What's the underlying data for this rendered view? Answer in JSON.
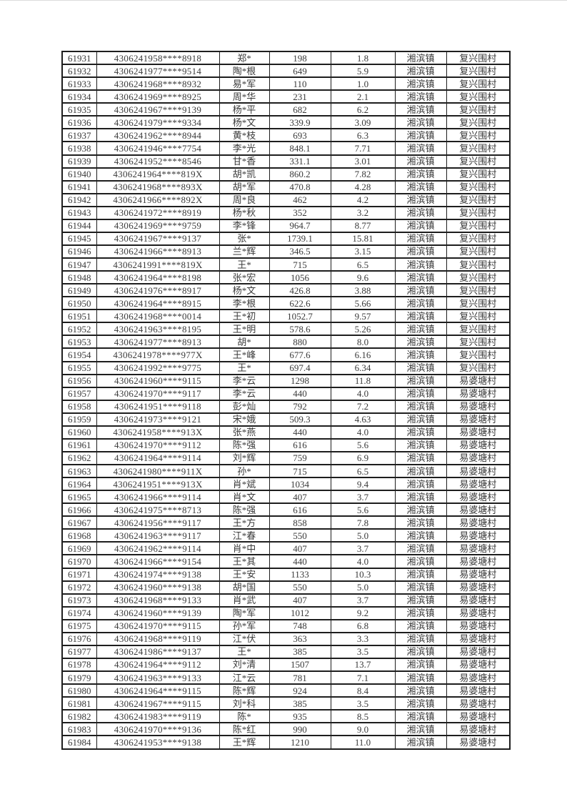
{
  "colors": {
    "page_background": "#ffffff",
    "table_border": "#1e1e1e",
    "text": "#3a3a3a",
    "page_top_edge": "#dcdcdc"
  },
  "table": {
    "rows": [
      [
        "61931",
        "4306241958****8918",
        "郑*",
        "198",
        "1.8",
        "湘滨镇",
        "复兴围村"
      ],
      [
        "61932",
        "4306241977****9514",
        "陶*根",
        "649",
        "5.9",
        "湘滨镇",
        "复兴围村"
      ],
      [
        "61933",
        "4306241968****8932",
        "易*军",
        "110",
        "1.0",
        "湘滨镇",
        "复兴围村"
      ],
      [
        "61934",
        "4306241969****8925",
        "周*华",
        "231",
        "2.1",
        "湘滨镇",
        "复兴围村"
      ],
      [
        "61935",
        "4306241967****9139",
        "杨*平",
        "682",
        "6.2",
        "湘滨镇",
        "复兴围村"
      ],
      [
        "61936",
        "4306241979****9334",
        "杨*文",
        "339.9",
        "3.09",
        "湘滨镇",
        "复兴围村"
      ],
      [
        "61937",
        "4306241962****8944",
        "黄*枝",
        "693",
        "6.3",
        "湘滨镇",
        "复兴围村"
      ],
      [
        "61938",
        "4306241946****7754",
        "李*光",
        "848.1",
        "7.71",
        "湘滨镇",
        "复兴围村"
      ],
      [
        "61939",
        "4306241952****8546",
        "甘*香",
        "331.1",
        "3.01",
        "湘滨镇",
        "复兴围村"
      ],
      [
        "61940",
        "4306241964****819X",
        "胡*凯",
        "860.2",
        "7.82",
        "湘滨镇",
        "复兴围村"
      ],
      [
        "61941",
        "4306241968****893X",
        "胡*军",
        "470.8",
        "4.28",
        "湘滨镇",
        "复兴围村"
      ],
      [
        "61942",
        "4306241966****892X",
        "周*良",
        "462",
        "4.2",
        "湘滨镇",
        "复兴围村"
      ],
      [
        "61943",
        "4306241972****8919",
        "杨*秋",
        "352",
        "3.2",
        "湘滨镇",
        "复兴围村"
      ],
      [
        "61944",
        "4306241969****9759",
        "李*锋",
        "964.7",
        "8.77",
        "湘滨镇",
        "复兴围村"
      ],
      [
        "61945",
        "4306241967****9137",
        "张*",
        "1739.1",
        "15.81",
        "湘滨镇",
        "复兴围村"
      ],
      [
        "61946",
        "4306241966****8913",
        "兰*辉",
        "346.5",
        "3.15",
        "湘滨镇",
        "复兴围村"
      ],
      [
        "61947",
        "4306241991****819X",
        "王*",
        "715",
        "6.5",
        "湘滨镇",
        "复兴围村"
      ],
      [
        "61948",
        "4306241964****8198",
        "张*宏",
        "1056",
        "9.6",
        "湘滨镇",
        "复兴围村"
      ],
      [
        "61949",
        "4306241976****8917",
        "杨*文",
        "426.8",
        "3.88",
        "湘滨镇",
        "复兴围村"
      ],
      [
        "61950",
        "4306241964****8915",
        "李*根",
        "622.6",
        "5.66",
        "湘滨镇",
        "复兴围村"
      ],
      [
        "61951",
        "4306241968****0014",
        "王*初",
        "1052.7",
        "9.57",
        "湘滨镇",
        "复兴围村"
      ],
      [
        "61952",
        "4306241963****8195",
        "王*明",
        "578.6",
        "5.26",
        "湘滨镇",
        "复兴围村"
      ],
      [
        "61953",
        "4306241977****8913",
        "胡*",
        "880",
        "8.0",
        "湘滨镇",
        "复兴围村"
      ],
      [
        "61954",
        "4306241978****977X",
        "王*峰",
        "677.6",
        "6.16",
        "湘滨镇",
        "复兴围村"
      ],
      [
        "61955",
        "4306241992****9775",
        "王*",
        "697.4",
        "6.34",
        "湘滨镇",
        "复兴围村"
      ],
      [
        "61956",
        "4306241960****9115",
        "李*云",
        "1298",
        "11.8",
        "湘滨镇",
        "易婆塘村"
      ],
      [
        "61957",
        "4306241970****9117",
        "李*云",
        "440",
        "4.0",
        "湘滨镇",
        "易婆塘村"
      ],
      [
        "61958",
        "4306241951****9118",
        "彭*灿",
        "792",
        "7.2",
        "湘滨镇",
        "易婆塘村"
      ],
      [
        "61959",
        "4306241973****9121",
        "宋*娥",
        "509.3",
        "4.63",
        "湘滨镇",
        "易婆塘村"
      ],
      [
        "61960",
        "4306241958****913X",
        "张*燕",
        "440",
        "4.0",
        "湘滨镇",
        "易婆塘村"
      ],
      [
        "61961",
        "4306241970****9112",
        "陈*强",
        "616",
        "5.6",
        "湘滨镇",
        "易婆塘村"
      ],
      [
        "61962",
        "4306241964****9114",
        "刘*辉",
        "759",
        "6.9",
        "湘滨镇",
        "易婆塘村"
      ],
      [
        "61963",
        "4306241980****911X",
        "孙*",
        "715",
        "6.5",
        "湘滨镇",
        "易婆塘村"
      ],
      [
        "61964",
        "4306241951****913X",
        "肖*斌",
        "1034",
        "9.4",
        "湘滨镇",
        "易婆塘村"
      ],
      [
        "61965",
        "4306241966****9114",
        "肖*文",
        "407",
        "3.7",
        "湘滨镇",
        "易婆塘村"
      ],
      [
        "61966",
        "4306241975****8713",
        "陈*强",
        "616",
        "5.6",
        "湘滨镇",
        "易婆塘村"
      ],
      [
        "61967",
        "4306241956****9117",
        "王*方",
        "858",
        "7.8",
        "湘滨镇",
        "易婆塘村"
      ],
      [
        "61968",
        "4306241963****9117",
        "江*春",
        "550",
        "5.0",
        "湘滨镇",
        "易婆塘村"
      ],
      [
        "61969",
        "4306241962****9114",
        "肖*中",
        "407",
        "3.7",
        "湘滨镇",
        "易婆塘村"
      ],
      [
        "61970",
        "4306241966****9154",
        "王*其",
        "440",
        "4.0",
        "湘滨镇",
        "易婆塘村"
      ],
      [
        "61971",
        "4306241974****9138",
        "王*安",
        "1133",
        "10.3",
        "湘滨镇",
        "易婆塘村"
      ],
      [
        "61972",
        "4306241960****9138",
        "胡*国",
        "550",
        "5.0",
        "湘滨镇",
        "易婆塘村"
      ],
      [
        "61973",
        "4306241968****9133",
        "肖*武",
        "407",
        "3.7",
        "湘滨镇",
        "易婆塘村"
      ],
      [
        "61974",
        "4306241960****9139",
        "陶*军",
        "1012",
        "9.2",
        "湘滨镇",
        "易婆塘村"
      ],
      [
        "61975",
        "4306241970****9115",
        "孙*军",
        "748",
        "6.8",
        "湘滨镇",
        "易婆塘村"
      ],
      [
        "61976",
        "4306241968****9119",
        "江*伏",
        "363",
        "3.3",
        "湘滨镇",
        "易婆塘村"
      ],
      [
        "61977",
        "4306241986****9137",
        "王*",
        "385",
        "3.5",
        "湘滨镇",
        "易婆塘村"
      ],
      [
        "61978",
        "4306241964****9112",
        "刘*清",
        "1507",
        "13.7",
        "湘滨镇",
        "易婆塘村"
      ],
      [
        "61979",
        "4306241963****9133",
        "江*云",
        "781",
        "7.1",
        "湘滨镇",
        "易婆塘村"
      ],
      [
        "61980",
        "4306241964****9115",
        "陈*辉",
        "924",
        "8.4",
        "湘滨镇",
        "易婆塘村"
      ],
      [
        "61981",
        "4306241967****9115",
        "刘*科",
        "385",
        "3.5",
        "湘滨镇",
        "易婆塘村"
      ],
      [
        "61982",
        "4306241983****9119",
        "陈*",
        "935",
        "8.5",
        "湘滨镇",
        "易婆塘村"
      ],
      [
        "61983",
        "4306241970****9136",
        "陈*红",
        "990",
        "9.0",
        "湘滨镇",
        "易婆塘村"
      ],
      [
        "61984",
        "4306241953****9138",
        "王*辉",
        "1210",
        "11.0",
        "湘滨镇",
        "易婆塘村"
      ]
    ]
  }
}
